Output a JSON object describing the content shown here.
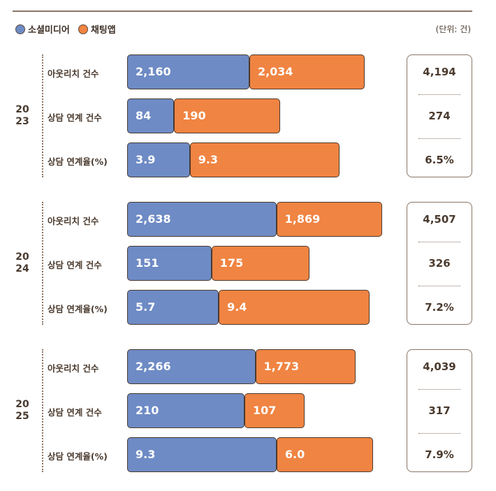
{
  "legend": {
    "social_label": "소셜미디어",
    "chat_label": "채팅앱",
    "unit": "(단위: 건)"
  },
  "colors": {
    "social": "#6e8bc5",
    "chat": "#f08442"
  },
  "chart_data": {
    "type": "bar",
    "orientation": "horizontal",
    "stacked": true,
    "series_names": [
      "소셜미디어",
      "채팅앱"
    ],
    "groups": [
      {
        "year": "2023",
        "year_lines": [
          "20",
          "23"
        ],
        "rows": [
          {
            "label": "아웃리치 건수",
            "social": 2160,
            "chat": 2034,
            "social_text": "2,160",
            "chat_text": "2,034",
            "total_text": "4,194"
          },
          {
            "label": "상담 연계 건수",
            "social": 84,
            "chat": 190,
            "social_text": "84",
            "chat_text": "190",
            "total_text": "274"
          },
          {
            "label": "상담 연계율(%)",
            "social": 3.9,
            "chat": 9.3,
            "social_text": "3.9",
            "chat_text": "9.3",
            "total_text": "6.5%"
          }
        ]
      },
      {
        "year": "2024",
        "year_lines": [
          "20",
          "24"
        ],
        "rows": [
          {
            "label": "아웃리치 건수",
            "social": 2638,
            "chat": 1869,
            "social_text": "2,638",
            "chat_text": "1,869",
            "total_text": "4,507"
          },
          {
            "label": "상담 연계 건수",
            "social": 151,
            "chat": 175,
            "social_text": "151",
            "chat_text": "175",
            "total_text": "326"
          },
          {
            "label": "상담 연계율(%)",
            "social": 5.7,
            "chat": 9.4,
            "social_text": "5.7",
            "chat_text": "9.4",
            "total_text": "7.2%"
          }
        ]
      },
      {
        "year": "2025",
        "year_lines": [
          "20",
          "25"
        ],
        "rows": [
          {
            "label": "아웃리치 건수",
            "social": 2266,
            "chat": 1773,
            "social_text": "2,266",
            "chat_text": "1,773",
            "total_text": "4,039"
          },
          {
            "label": "상담 연계 건수",
            "social": 210,
            "chat": 107,
            "social_text": "210",
            "chat_text": "107",
            "total_text": "317"
          },
          {
            "label": "상담 연계율(%)",
            "social": 9.3,
            "chat": 6.0,
            "social_text": "9.3",
            "chat_text": "6.0",
            "total_text": "7.9%"
          }
        ]
      }
    ]
  }
}
